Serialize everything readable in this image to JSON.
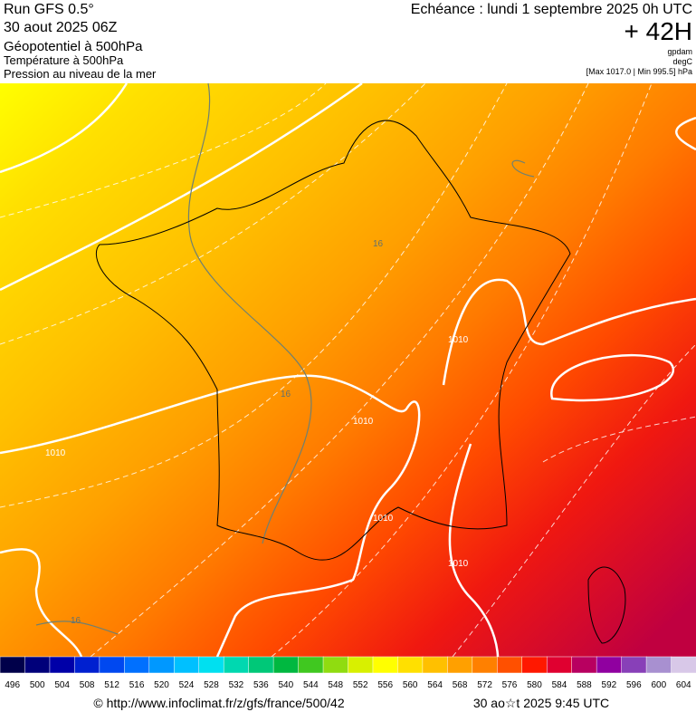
{
  "header": {
    "run": "Run GFS 0.5°",
    "date": "30 aout 2025 06Z",
    "field1": "Géopotentiel à 500hPa",
    "field2": "Température à 500hPa",
    "field3": "Pression au niveau de la mer",
    "valid": "Echéance : lundi 1 septembre 2025 0h UTC",
    "lead": "+ 42H",
    "unit1": "gpdam",
    "unit2": "degC",
    "range": "[Max 1017.0 | Min 995.5] hPa"
  },
  "map": {
    "labels": [
      "1010",
      "1010",
      "1010",
      "1010",
      "1010",
      "16",
      "16",
      "16"
    ]
  },
  "legend": {
    "labels": [
      496,
      500,
      504,
      508,
      512,
      516,
      520,
      524,
      528,
      532,
      536,
      540,
      544,
      548,
      552,
      556,
      560,
      564,
      568,
      572,
      576,
      580,
      584,
      588,
      592,
      596,
      600,
      604
    ],
    "colors": [
      "#00004a",
      "#00007a",
      "#0000a8",
      "#0020d0",
      "#0048f0",
      "#0070ff",
      "#0098ff",
      "#00c0ff",
      "#00e0f0",
      "#00d8b0",
      "#00c878",
      "#00b840",
      "#40c820",
      "#90dc10",
      "#d8f000",
      "#ffff00",
      "#ffe000",
      "#ffc000",
      "#ffa000",
      "#ff8000",
      "#ff5000",
      "#ff1800",
      "#e00030",
      "#b80060",
      "#9000a0",
      "#8840b8",
      "#a890d0",
      "#d8c8e8"
    ]
  },
  "footer": {
    "url": "© http://www.infoclimat.fr/z/gfs/france/500/42",
    "time": "30 ao☆t 2025  9:45 UTC"
  }
}
